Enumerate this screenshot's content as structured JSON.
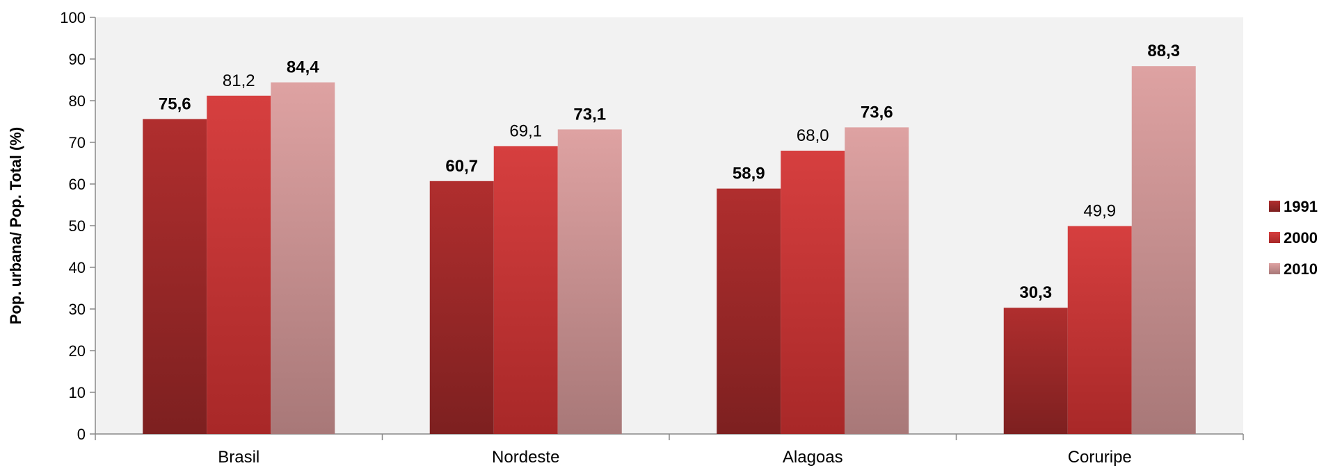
{
  "chart_data": {
    "type": "bar",
    "categories": [
      "Brasil",
      "Nordeste",
      "Alagoas",
      "Coruripe"
    ],
    "series": [
      {
        "name": "1991",
        "values": [
          75.6,
          60.7,
          58.9,
          30.3
        ],
        "labels": [
          "75,6",
          "60,7",
          "58,9",
          "30,3"
        ],
        "label_bold": true,
        "color": "#a52a2a"
      },
      {
        "name": "2000",
        "values": [
          81.2,
          69.1,
          68.0,
          49.9
        ],
        "labels": [
          "81,2",
          "69,1",
          "68,0",
          "49,9"
        ],
        "label_bold": false,
        "color": "#d13b3b"
      },
      {
        "name": "2010",
        "values": [
          84.4,
          73.1,
          73.6,
          88.3
        ],
        "labels": [
          "84,4",
          "73,1",
          "73,6",
          "88,3"
        ],
        "label_bold": true,
        "color": "#d99a9a"
      }
    ],
    "title": "",
    "xlabel": "",
    "ylabel": "Pop. urbana/ Pop. Total (%)",
    "ylim": [
      0,
      100
    ],
    "yticks": [
      "0",
      "10",
      "20",
      "30",
      "40",
      "50",
      "60",
      "70",
      "80",
      "90",
      "100"
    ],
    "grid": false,
    "legend": "right",
    "plot_background": "#f2f2f2"
  }
}
